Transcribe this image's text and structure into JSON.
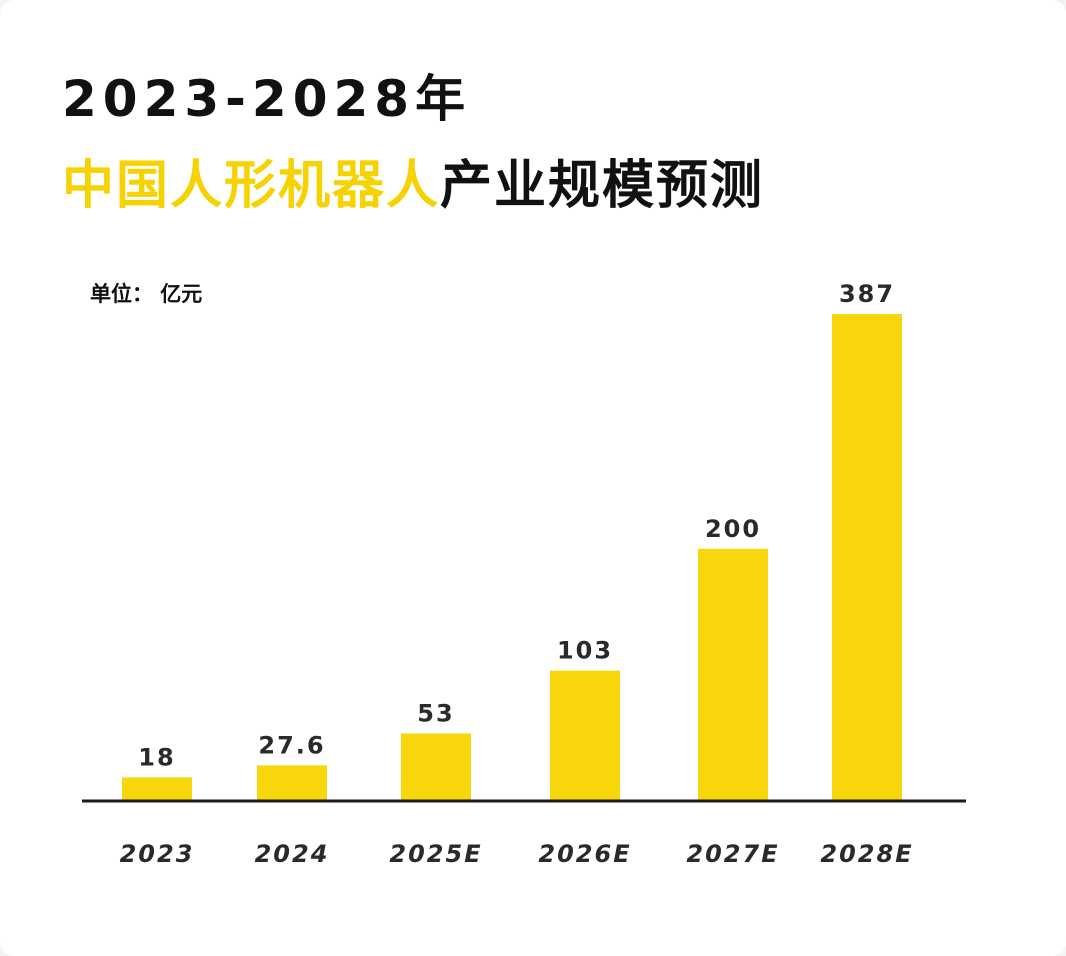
{
  "title": {
    "line1": "2023-2028年",
    "line2_highlight": "中国人形机器人",
    "line2_rest": "产业规模预测"
  },
  "unit_label": "单位： 亿元",
  "colors": {
    "bar": "#f7d60c",
    "highlight_text": "#f6d200",
    "text": "#111111"
  },
  "chart_data": {
    "type": "bar",
    "title": "2023-2028年 中国人形机器人产业规模预测",
    "ylabel": "单位： 亿元",
    "categories": [
      "2023",
      "2024",
      "2025E",
      "2026E",
      "2027E",
      "2028E"
    ],
    "values": [
      18,
      27.6,
      53,
      103,
      200,
      387
    ],
    "value_labels": [
      "18",
      "27.6",
      "53",
      "103",
      "200",
      "387"
    ],
    "ylim": [
      0,
      387
    ],
    "grid": false
  }
}
